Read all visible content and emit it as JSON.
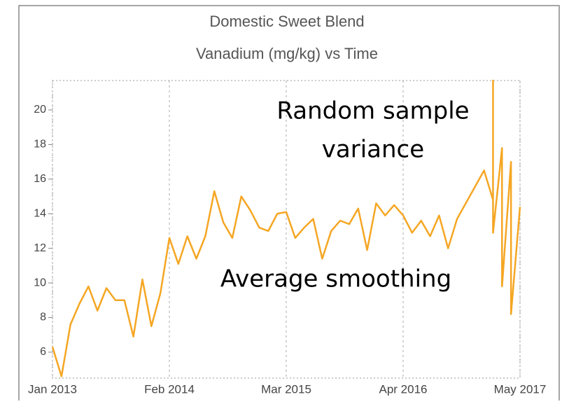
{
  "chart_data": {
    "type": "line",
    "title": "Domestic Sweet Blend",
    "subtitle": "Vanadium (mg/kg) vs Time",
    "x": [
      "2013-01",
      "2013-02",
      "2013-03",
      "2013-04",
      "2013-05",
      "2013-06",
      "2013-07",
      "2013-08",
      "2013-09",
      "2013-10",
      "2013-11",
      "2013-12",
      "2014-01",
      "2014-02",
      "2014-03",
      "2014-04",
      "2014-05",
      "2014-06",
      "2014-07",
      "2014-08",
      "2014-09",
      "2014-10",
      "2014-11",
      "2014-12",
      "2015-01",
      "2015-02",
      "2015-03",
      "2015-04",
      "2015-05",
      "2015-06",
      "2015-07",
      "2015-08",
      "2015-09",
      "2015-10",
      "2015-11",
      "2015-12",
      "2016-01",
      "2016-02",
      "2016-03",
      "2016-04",
      "2016-05",
      "2016-06",
      "2016-07",
      "2016-08",
      "2016-09",
      "2016-10",
      "2017-01",
      "2017-02",
      "2017-02",
      "2017-02",
      "2017-03",
      "2017-03",
      "2017-04",
      "2017-04",
      "2017-05"
    ],
    "series": [
      {
        "color": "#f5a623",
        "values": [
          6.3,
          4.6,
          7.6,
          8.8,
          9.8,
          8.4,
          9.7,
          9.0,
          9.0,
          6.9,
          10.2,
          7.5,
          9.4,
          12.6,
          11.1,
          12.7,
          11.4,
          12.7,
          15.3,
          13.5,
          12.6,
          15.0,
          14.2,
          13.2,
          13.0,
          14.0,
          14.1,
          12.6,
          13.2,
          13.7,
          11.4,
          13.0,
          13.6,
          13.4,
          14.3,
          11.9,
          14.6,
          13.9,
          14.5,
          13.9,
          12.9,
          13.6,
          12.7,
          13.9,
          12.0,
          13.7,
          16.5,
          14.8,
          21.7,
          12.9,
          17.8,
          9.8,
          17.0,
          8.2,
          14.4
        ]
      }
    ],
    "xlim": [
      "2013-01",
      "2017-05"
    ],
    "xticks": [
      {
        "value": "2013-01",
        "label": "Jan 2013"
      },
      {
        "value": "2014-02",
        "label": "Feb 2014"
      },
      {
        "value": "2015-03",
        "label": "Mar 2015"
      },
      {
        "value": "2016-04",
        "label": "Apr 2016"
      },
      {
        "value": "2017-05",
        "label": "May 2017"
      }
    ],
    "ylim": [
      4.5,
      21.7
    ],
    "yticks": [
      6,
      8,
      10,
      12,
      14,
      16,
      18,
      20
    ],
    "grid": true,
    "annotations": [
      {
        "lines": [
          "Random sample",
          "variance"
        ]
      },
      {
        "lines": [
          "Average smoothing"
        ]
      }
    ]
  }
}
